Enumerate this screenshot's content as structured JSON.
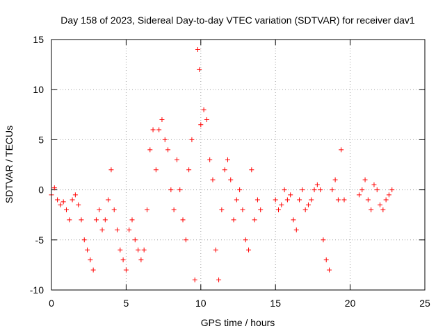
{
  "chart_data": {
    "type": "scatter",
    "title": "Day 158 of 2023, Sidereal Day-to-day VTEC variation (SDTVAR) for receiver dav1",
    "xlabel": "GPS time / hours",
    "ylabel": "SDTVAR / TECUs",
    "xlim": [
      0,
      25
    ],
    "ylim": [
      -10,
      15
    ],
    "xticks": [
      0,
      5,
      10,
      15,
      20,
      25
    ],
    "yticks": [
      -10,
      -5,
      0,
      5,
      10,
      15
    ],
    "grid": true,
    "marker": "+",
    "color": "#ff0000",
    "series": [
      {
        "name": "SDTVAR",
        "x": [
          0.0,
          0.2,
          0.4,
          0.6,
          0.8,
          1.0,
          1.2,
          1.4,
          1.6,
          1.8,
          2.0,
          2.2,
          2.4,
          2.6,
          2.8,
          3.0,
          3.2,
          3.4,
          3.6,
          3.8,
          4.0,
          4.2,
          4.4,
          4.6,
          4.8,
          5.0,
          5.2,
          5.4,
          5.6,
          5.8,
          6.0,
          6.2,
          6.4,
          6.6,
          6.8,
          7.0,
          7.2,
          7.4,
          7.6,
          7.8,
          8.0,
          8.2,
          8.4,
          8.6,
          8.8,
          9.0,
          9.2,
          9.4,
          9.6,
          9.8,
          9.9,
          10.0,
          10.2,
          10.4,
          10.6,
          10.8,
          11.0,
          11.2,
          11.4,
          11.6,
          11.8,
          12.0,
          12.2,
          12.4,
          12.6,
          12.8,
          13.0,
          13.2,
          13.4,
          13.6,
          13.8,
          14.0,
          15.0,
          15.2,
          15.4,
          15.6,
          15.8,
          16.0,
          16.2,
          16.4,
          16.6,
          16.8,
          17.0,
          17.2,
          17.4,
          17.6,
          17.8,
          18.0,
          18.2,
          18.4,
          18.6,
          18.8,
          19.0,
          19.2,
          19.4,
          19.6,
          20.6,
          20.8,
          21.0,
          21.2,
          21.4,
          21.6,
          21.8,
          22.0,
          22.2,
          22.4,
          22.6,
          22.8
        ],
        "y": [
          -0.5,
          0.2,
          -1.0,
          -1.5,
          -1.2,
          -2.0,
          -3.0,
          -1.0,
          -0.5,
          -1.5,
          -3.0,
          -5.0,
          -6.0,
          -7.0,
          -8.0,
          -3.0,
          -2.0,
          -4.0,
          -3.0,
          -1.0,
          2.0,
          -2.0,
          -4.0,
          -6.0,
          -7.0,
          -8.0,
          -4.0,
          -3.0,
          -5.0,
          -6.0,
          -7.0,
          -6.0,
          -2.0,
          4.0,
          6.0,
          2.0,
          6.0,
          7.0,
          5.0,
          4.0,
          0.0,
          -2.0,
          3.0,
          0.0,
          -3.0,
          -5.0,
          2.0,
          5.0,
          -9.0,
          14.0,
          12.0,
          6.5,
          8.0,
          7.0,
          3.0,
          1.0,
          -6.0,
          -9.0,
          -2.0,
          2.0,
          3.0,
          1.0,
          -3.0,
          -1.0,
          0.0,
          -2.0,
          -5.0,
          -6.0,
          2.0,
          -3.0,
          -1.0,
          -2.0,
          -1.0,
          -2.0,
          -1.5,
          0.0,
          -1.0,
          -0.5,
          -3.0,
          -4.0,
          -1.0,
          0.0,
          -2.0,
          -1.5,
          -1.0,
          0.0,
          0.5,
          0.0,
          -5.0,
          -7.0,
          -8.0,
          0.0,
          1.0,
          -1.0,
          4.0,
          -1.0,
          -0.5,
          0.0,
          1.0,
          -1.0,
          -2.0,
          0.5,
          0.0,
          -1.5,
          -2.0,
          -1.0,
          -0.5,
          0.0
        ]
      }
    ]
  }
}
